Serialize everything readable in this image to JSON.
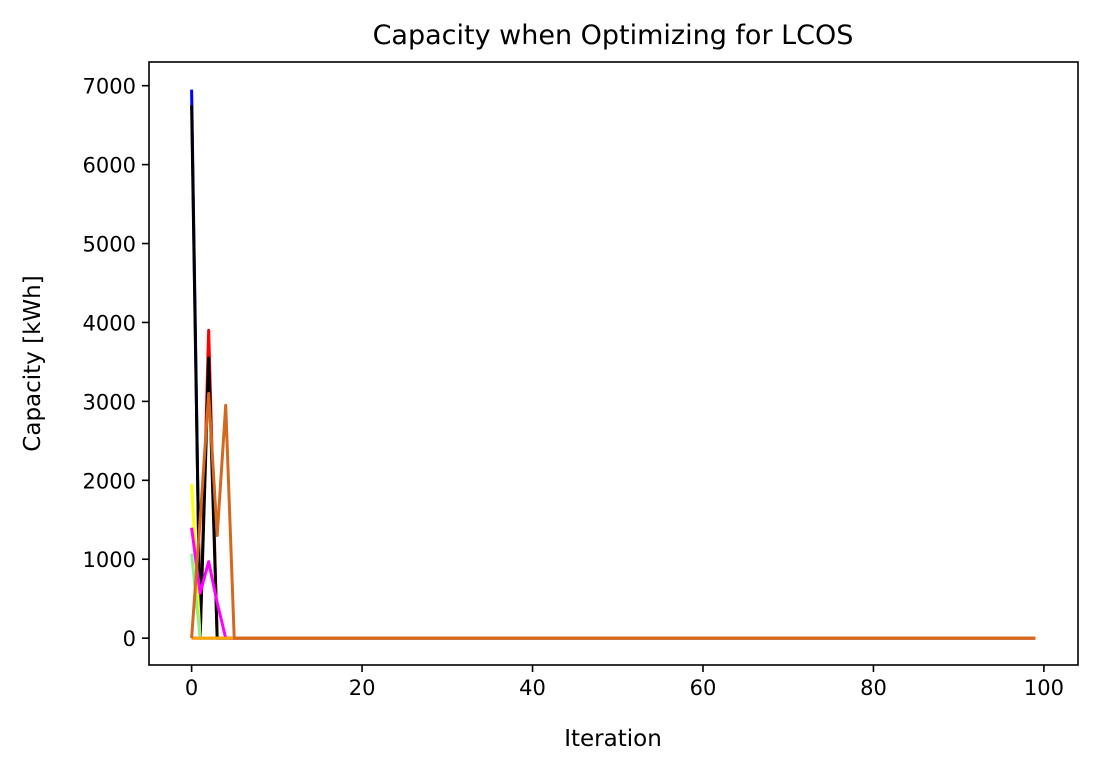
{
  "chart_data": {
    "type": "line",
    "title": "Capacity when Optimizing for LCOS",
    "xlabel": "Iteration",
    "ylabel": "Capacity [kWh]",
    "xlim": [
      -5,
      104
    ],
    "ylim": [
      -340,
      7300
    ],
    "xticks": [
      0,
      20,
      40,
      60,
      80,
      100
    ],
    "yticks": [
      0,
      1000,
      2000,
      3000,
      4000,
      5000,
      6000,
      7000
    ],
    "grid": false,
    "legend": "none",
    "x_start": 0,
    "x_end": 99,
    "series": [
      {
        "color": "#0000ff",
        "points": [
          [
            0,
            6950
          ],
          [
            1,
            0
          ],
          [
            99,
            0
          ]
        ]
      },
      {
        "color": "#ff0000",
        "points": [
          [
            0,
            0
          ],
          [
            1,
            0
          ],
          [
            2,
            3900
          ],
          [
            3,
            0
          ],
          [
            99,
            0
          ]
        ]
      },
      {
        "color": "#000000",
        "points": [
          [
            0,
            6750
          ],
          [
            1,
            0
          ],
          [
            2,
            3550
          ],
          [
            3,
            0
          ],
          [
            99,
            0
          ]
        ]
      },
      {
        "color": "#ffff00",
        "points": [
          [
            0,
            1950
          ],
          [
            1,
            0
          ],
          [
            99,
            0
          ]
        ]
      },
      {
        "color": "#90ee90",
        "points": [
          [
            0,
            1070
          ],
          [
            1,
            0
          ],
          [
            99,
            0
          ]
        ]
      },
      {
        "color": "#ff00ff",
        "points": [
          [
            0,
            1400
          ],
          [
            1,
            570
          ],
          [
            2,
            970
          ],
          [
            3,
            450
          ],
          [
            4,
            0
          ],
          [
            99,
            0
          ]
        ]
      },
      {
        "color": "#ffa500",
        "points": [
          [
            0,
            0
          ],
          [
            99,
            0
          ]
        ]
      },
      {
        "color": "#d2691e",
        "points": [
          [
            0,
            0
          ],
          [
            1,
            1500
          ],
          [
            2,
            3100
          ],
          [
            3,
            1300
          ],
          [
            4,
            2950
          ],
          [
            5,
            0
          ],
          [
            99,
            0
          ]
        ]
      }
    ]
  }
}
